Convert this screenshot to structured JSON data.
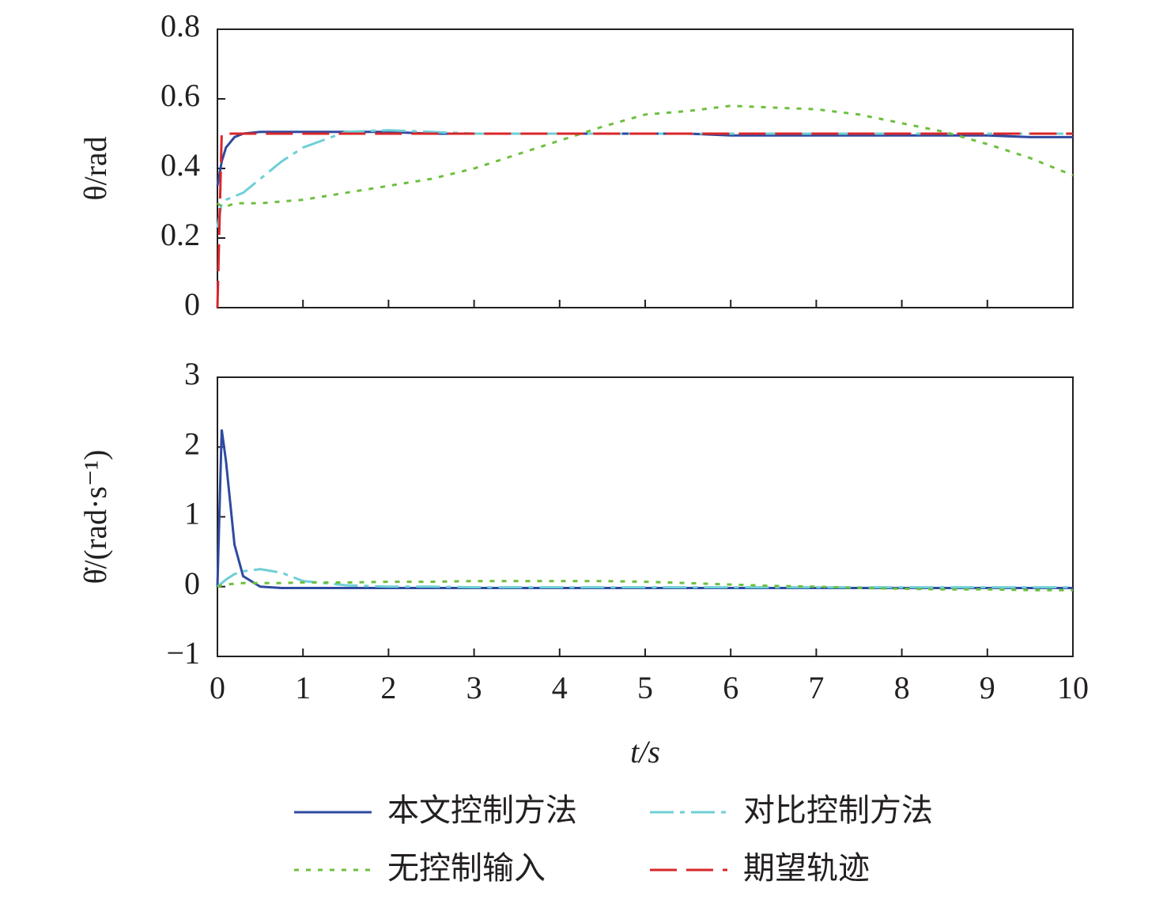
{
  "chart_data": [
    {
      "type": "line",
      "ylabel": "θ/rad",
      "x": [
        0,
        0.05,
        0.1,
        0.2,
        0.3,
        0.5,
        0.75,
        1,
        1.5,
        2,
        2.5,
        3,
        3.5,
        4,
        4.5,
        5,
        5.5,
        6,
        6.5,
        7,
        7.5,
        8,
        8.5,
        9,
        9.5,
        10
      ],
      "xlim": [
        0,
        10
      ],
      "xticks": [
        0,
        1,
        2,
        3,
        4,
        5,
        6,
        7,
        8,
        9,
        10
      ],
      "ylim": [
        0,
        0.8
      ],
      "yticks": [
        0,
        0.2,
        0.4,
        0.6,
        0.8
      ],
      "series": [
        {
          "name": "本文控制方法",
          "color": "#2f4aa0",
          "values": [
            0.35,
            0.42,
            0.46,
            0.49,
            0.5,
            0.505,
            0.505,
            0.505,
            0.505,
            0.505,
            0.5,
            0.5,
            0.5,
            0.5,
            0.5,
            0.5,
            0.5,
            0.495,
            0.495,
            0.495,
            0.495,
            0.495,
            0.495,
            0.495,
            0.49,
            0.49
          ]
        },
        {
          "name": "对比控制方法",
          "color": "#6fcfd6",
          "values": [
            0.23,
            0.3,
            0.31,
            0.32,
            0.33,
            0.37,
            0.42,
            0.46,
            0.505,
            0.51,
            0.505,
            0.5,
            0.5,
            0.5,
            0.5,
            0.5,
            0.5,
            0.5,
            0.5,
            0.5,
            0.5,
            0.5,
            0.5,
            0.5,
            0.5,
            0.5
          ]
        },
        {
          "name": "无控制输入",
          "color": "#6dbf3e",
          "values": [
            0.3,
            0.29,
            0.29,
            0.3,
            0.3,
            0.3,
            0.305,
            0.31,
            0.33,
            0.35,
            0.37,
            0.4,
            0.44,
            0.48,
            0.52,
            0.555,
            0.565,
            0.58,
            0.575,
            0.57,
            0.555,
            0.53,
            0.505,
            0.47,
            0.43,
            0.38
          ]
        },
        {
          "name": "期望轨迹",
          "color": "#d9262a",
          "values": [
            0,
            0.5,
            0.5,
            0.5,
            0.5,
            0.5,
            0.5,
            0.5,
            0.5,
            0.5,
            0.5,
            0.5,
            0.5,
            0.5,
            0.5,
            0.5,
            0.5,
            0.5,
            0.5,
            0.5,
            0.5,
            0.5,
            0.5,
            0.5,
            0.5,
            0.5
          ]
        }
      ]
    },
    {
      "type": "line",
      "ylabel": "θ̇/(rad·s⁻¹)",
      "xlabel": "t/s",
      "x": [
        0,
        0.05,
        0.1,
        0.2,
        0.3,
        0.5,
        0.75,
        1,
        1.5,
        2,
        2.5,
        3,
        3.5,
        4,
        4.5,
        5,
        5.5,
        6,
        6.5,
        7,
        7.5,
        8,
        8.5,
        9,
        9.5,
        10
      ],
      "xlim": [
        0,
        10
      ],
      "xticks": [
        0,
        1,
        2,
        3,
        4,
        5,
        6,
        7,
        8,
        9,
        10
      ],
      "ylim": [
        -1,
        3
      ],
      "yticks": [
        {
          "value": -1,
          "label": "−1"
        },
        0,
        1,
        2,
        3
      ],
      "series": [
        {
          "color": "#2f4aa0",
          "values": [
            0,
            2.25,
            1.8,
            0.6,
            0.15,
            0,
            -0.02,
            -0.02,
            -0.02,
            -0.02,
            -0.02,
            -0.02,
            -0.02,
            -0.02,
            -0.02,
            -0.02,
            -0.02,
            -0.02,
            -0.02,
            -0.02,
            -0.02,
            -0.02,
            -0.02,
            -0.02,
            -0.02,
            -0.02
          ]
        },
        {
          "color": "#6fcfd6",
          "values": [
            0,
            0.05,
            0.1,
            0.18,
            0.22,
            0.25,
            0.2,
            0.08,
            0.02,
            0,
            0,
            -0.01,
            -0.01,
            -0.01,
            -0.01,
            -0.01,
            -0.01,
            -0.01,
            -0.01,
            -0.01,
            -0.01,
            -0.01,
            -0.01,
            -0.01,
            -0.01,
            -0.01
          ]
        },
        {
          "color": "#6dbf3e",
          "values": [
            0,
            0.02,
            0.03,
            0.04,
            0.05,
            0.05,
            0.05,
            0.06,
            0.06,
            0.07,
            0.07,
            0.08,
            0.08,
            0.08,
            0.08,
            0.07,
            0.05,
            0.03,
            0.01,
            0,
            -0.02,
            -0.03,
            -0.04,
            -0.04,
            -0.05,
            -0.05
          ]
        }
      ]
    }
  ]
}
